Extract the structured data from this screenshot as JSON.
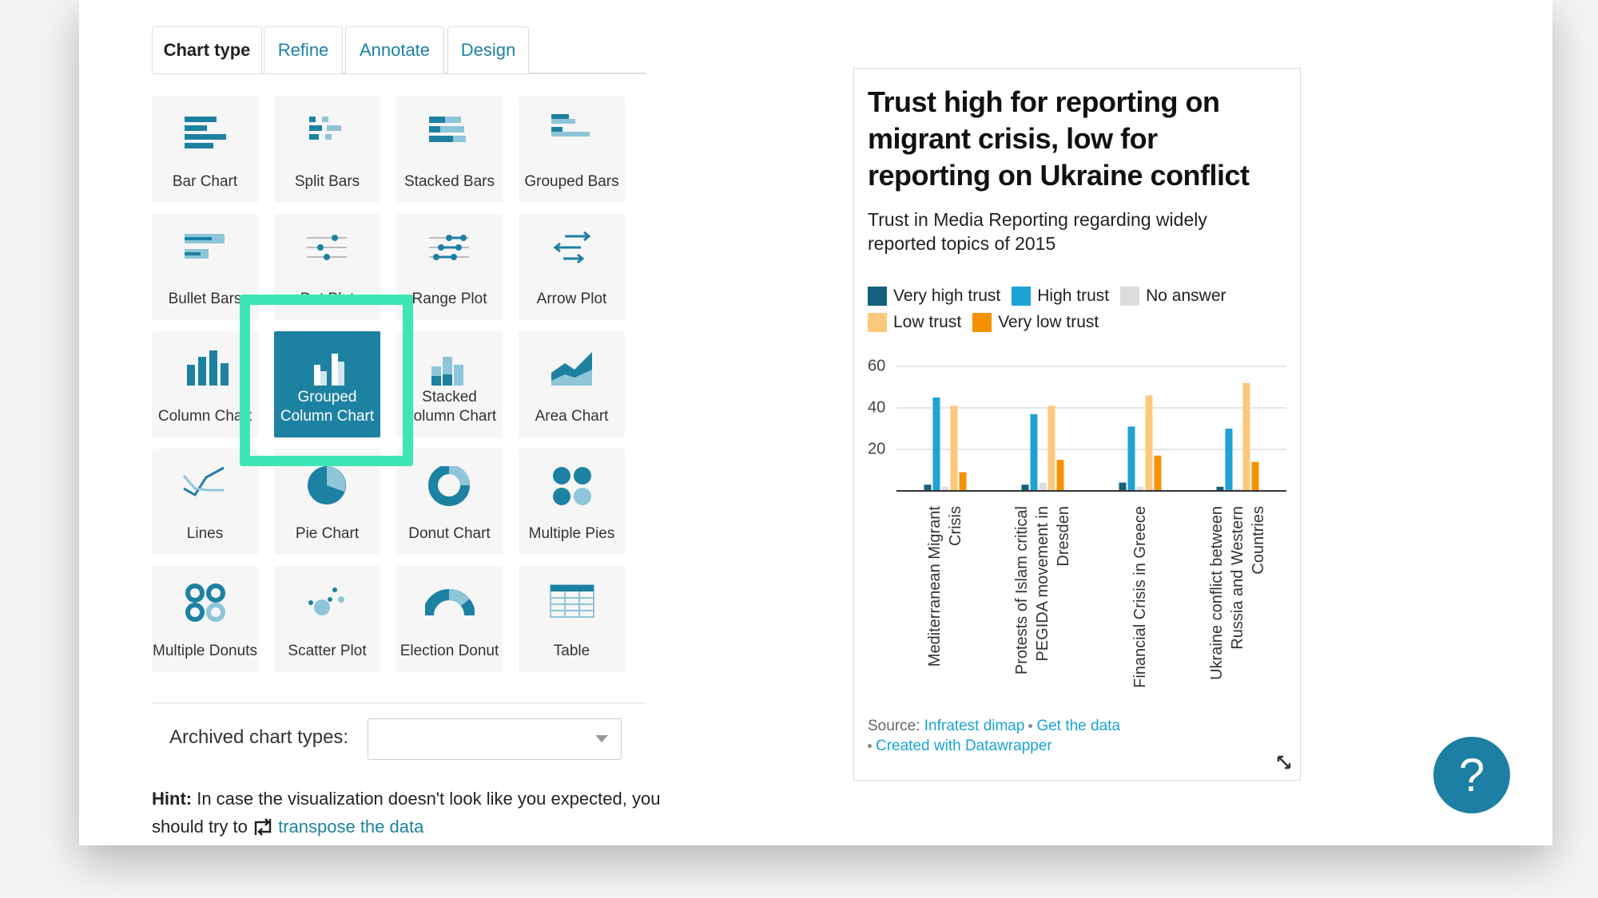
{
  "tabs": [
    "Chart type",
    "Refine",
    "Annotate",
    "Design"
  ],
  "chart_types": [
    "Bar Chart",
    "Split Bars",
    "Stacked Bars",
    "Grouped Bars",
    "Bullet Bars",
    "Dot Plot",
    "Range Plot",
    "Arrow Plot",
    "Column Chart",
    "Grouped Column Chart",
    "Stacked Column Chart",
    "Area Chart",
    "Lines",
    "Pie Chart",
    "Donut Chart",
    "Multiple Pies",
    "Multiple Donuts",
    "Scatter Plot",
    "Election Donut",
    "Table"
  ],
  "selected_chart_type": 9,
  "archived_label": "Archived chart types:",
  "hint": {
    "label": "Hint:",
    "text": "In case the visualization doesn't look like you expected, you should try to",
    "link": "transpose the data"
  },
  "preview": {
    "chart_data": {
      "type": "bar",
      "title": "Trust high for reporting on migrant crisis, low for reporting on Ukraine conflict",
      "subtitle": "Trust in Media Reporting regarding widely reported topics of 2015",
      "categories": [
        "Mediterranean Migrant Crisis",
        "Protests of Islam critical PEGIDA movement in Dresden",
        "Financial Crisis in Greece",
        "Ukraine conflict between Russia and Western Countries"
      ],
      "series": [
        {
          "name": "Very high trust",
          "color": "#15607a",
          "values": [
            3,
            3,
            4,
            2
          ]
        },
        {
          "name": "High trust",
          "color": "#1fa2d6",
          "values": [
            45,
            37,
            31,
            30
          ]
        },
        {
          "name": "No answer",
          "color": "#dcdcdc",
          "values": [
            2,
            4,
            2,
            1
          ]
        },
        {
          "name": "Low trust",
          "color": "#fcc97b",
          "values": [
            41,
            41,
            46,
            52
          ]
        },
        {
          "name": "Very low trust",
          "color": "#f59200",
          "values": [
            9,
            15,
            17,
            14
          ]
        }
      ],
      "ylim": [
        0,
        60
      ],
      "yticks": [
        20,
        40,
        60
      ],
      "grid": true
    },
    "source_label": "Source:",
    "source": "Infratest dimap",
    "get_data": "Get the data",
    "credit": "Created with Datawrapper"
  },
  "help": "?"
}
